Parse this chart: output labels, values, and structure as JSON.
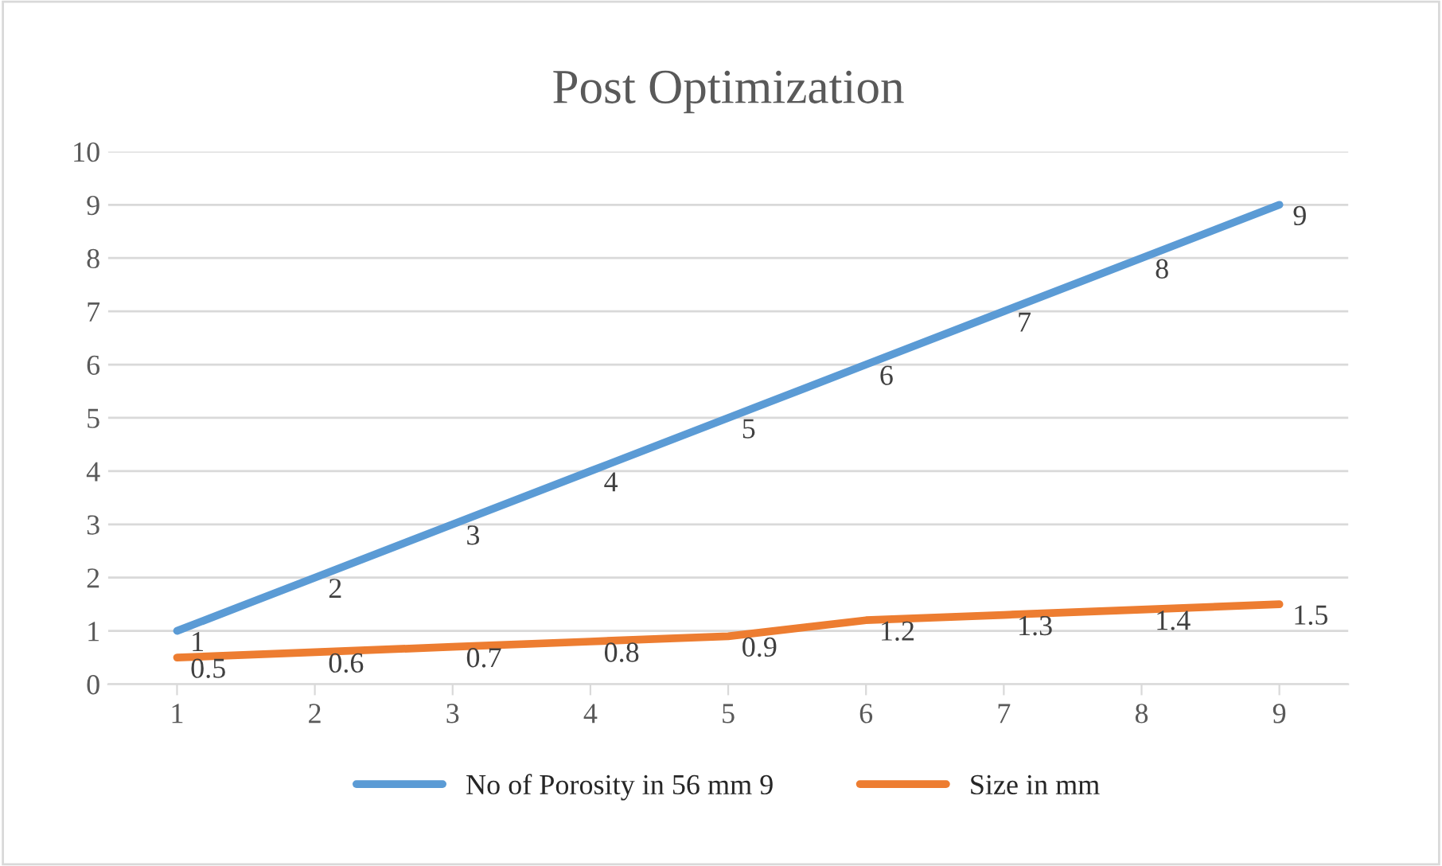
{
  "chart_data": {
    "type": "line",
    "title": "Post Optimization",
    "categories": [
      "1",
      "2",
      "3",
      "4",
      "5",
      "6",
      "7",
      "8",
      "9"
    ],
    "series": [
      {
        "name": "No of Porosity in 56 mm 9",
        "color": "#5b9bd5",
        "values": [
          1,
          2,
          3,
          4,
          5,
          6,
          7,
          8,
          9
        ]
      },
      {
        "name": "Size in mm",
        "color": "#ed7d31",
        "values": [
          0.5,
          0.6,
          0.7,
          0.8,
          0.9,
          1.2,
          1.3,
          1.4,
          1.5
        ]
      }
    ],
    "ylim": [
      0,
      10
    ],
    "yticks": [
      0,
      1,
      2,
      3,
      4,
      5,
      6,
      7,
      8,
      9,
      10
    ],
    "grid": "y",
    "legend": "bottom",
    "data_labels": true,
    "marker": "none",
    "line_style": "solid"
  }
}
